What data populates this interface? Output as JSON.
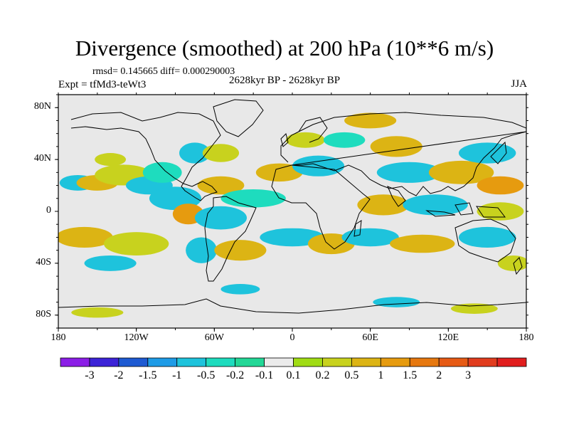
{
  "title": "Divergence (smoothed) at 200 hPa (10**6 m/s)",
  "stats": "rmsd= 0.145665 diff= 0.000290003",
  "expt": "Expt = tfMd3-teWt3",
  "period": "2628kyr BP - 2628kyr BP",
  "season": "JJA",
  "axes": {
    "lat_labels": [
      {
        "lat": 80,
        "label": "80N"
      },
      {
        "lat": 40,
        "label": "40N"
      },
      {
        "lat": 0,
        "label": "0"
      },
      {
        "lat": -40,
        "label": "40S"
      },
      {
        "lat": -80,
        "label": "80S"
      }
    ],
    "lon_labels": [
      {
        "lon": -180,
        "label": "180"
      },
      {
        "lon": -120,
        "label": "120W"
      },
      {
        "lon": -60,
        "label": "60W"
      },
      {
        "lon": 0,
        "label": "0"
      },
      {
        "lon": 60,
        "label": "60E"
      },
      {
        "lon": 120,
        "label": "120E"
      },
      {
        "lon": 180,
        "label": "180"
      }
    ]
  },
  "colorbar": {
    "colors": [
      "#8b1ee6",
      "#3c23d7",
      "#1e5ad2",
      "#1e9be6",
      "#1ec3dc",
      "#1edcbe",
      "#23d796",
      "#ebebeb",
      "#a0dc14",
      "#c8d21e",
      "#dcb414",
      "#e69b0f",
      "#e6780f",
      "#e65a14",
      "#e13c1e",
      "#e11e1e"
    ],
    "labels": [
      "-3",
      "-2",
      "-1.5",
      "-1",
      "-0.5",
      "-0.2",
      "-0.1",
      "0.1",
      "0.2",
      "0.5",
      "1",
      "1.5",
      "2",
      "3"
    ]
  },
  "chart_data": {
    "type": "filled-contour map",
    "variable": "Divergence (smoothed) at 200 hPa",
    "units": "10**6 m/s",
    "season": "JJA",
    "lon_range": [
      -180,
      180
    ],
    "lat_range": [
      -90,
      90
    ],
    "contour_levels": [
      -3,
      -2,
      -1.5,
      -1,
      -0.5,
      -0.2,
      -0.1,
      0.1,
      0.2,
      0.5,
      1,
      1.5,
      2,
      3
    ],
    "blobs": [
      {
        "lon": -165,
        "lat": 22,
        "rx": 14,
        "ry": 6,
        "level": "-0.5"
      },
      {
        "lon": -150,
        "lat": 22,
        "rx": 16,
        "ry": 6,
        "level": "0.5"
      },
      {
        "lon": -130,
        "lat": 28,
        "rx": 22,
        "ry": 8,
        "level": "0.2"
      },
      {
        "lon": -110,
        "lat": 20,
        "rx": 18,
        "ry": 7,
        "level": "-0.5"
      },
      {
        "lon": -140,
        "lat": 40,
        "rx": 12,
        "ry": 5,
        "level": "0.2"
      },
      {
        "lon": -90,
        "lat": 10,
        "rx": 20,
        "ry": 9,
        "level": "-0.5"
      },
      {
        "lon": -100,
        "lat": 30,
        "rx": 15,
        "ry": 8,
        "level": "-0.2"
      },
      {
        "lon": -75,
        "lat": 45,
        "rx": 12,
        "ry": 8,
        "level": "-0.5"
      },
      {
        "lon": -55,
        "lat": 45,
        "rx": 14,
        "ry": 7,
        "level": "0.2"
      },
      {
        "lon": -55,
        "lat": 20,
        "rx": 18,
        "ry": 7,
        "level": "0.5"
      },
      {
        "lon": -80,
        "lat": -2,
        "rx": 12,
        "ry": 8,
        "level": "1"
      },
      {
        "lon": -55,
        "lat": -5,
        "rx": 20,
        "ry": 9,
        "level": "-0.5"
      },
      {
        "lon": -30,
        "lat": 10,
        "rx": 25,
        "ry": 7,
        "level": "-0.2"
      },
      {
        "lon": -10,
        "lat": 30,
        "rx": 18,
        "ry": 7,
        "level": "0.5"
      },
      {
        "lon": 20,
        "lat": 35,
        "rx": 20,
        "ry": 8,
        "level": "-0.5"
      },
      {
        "lon": 10,
        "lat": 55,
        "rx": 15,
        "ry": 6,
        "level": "0.2"
      },
      {
        "lon": 40,
        "lat": 55,
        "rx": 16,
        "ry": 6,
        "level": "-0.2"
      },
      {
        "lon": 60,
        "lat": 70,
        "rx": 20,
        "ry": 6,
        "level": "0.5"
      },
      {
        "lon": 80,
        "lat": 50,
        "rx": 20,
        "ry": 8,
        "level": "0.5"
      },
      {
        "lon": 90,
        "lat": 30,
        "rx": 25,
        "ry": 8,
        "level": "-0.5"
      },
      {
        "lon": 130,
        "lat": 30,
        "rx": 25,
        "ry": 9,
        "level": "0.5"
      },
      {
        "lon": 150,
        "lat": 45,
        "rx": 22,
        "ry": 8,
        "level": "-0.5"
      },
      {
        "lon": 160,
        "lat": 20,
        "rx": 18,
        "ry": 7,
        "level": "1"
      },
      {
        "lon": 70,
        "lat": 5,
        "rx": 20,
        "ry": 8,
        "level": "0.5"
      },
      {
        "lon": 110,
        "lat": 5,
        "rx": 25,
        "ry": 8,
        "level": "-0.5"
      },
      {
        "lon": 160,
        "lat": 0,
        "rx": 18,
        "ry": 7,
        "level": "0.2"
      },
      {
        "lon": -160,
        "lat": -20,
        "rx": 22,
        "ry": 8,
        "level": "0.5"
      },
      {
        "lon": -120,
        "lat": -25,
        "rx": 25,
        "ry": 9,
        "level": "0.2"
      },
      {
        "lon": -140,
        "lat": -40,
        "rx": 20,
        "ry": 6,
        "level": "-0.5"
      },
      {
        "lon": -70,
        "lat": -30,
        "rx": 12,
        "ry": 10,
        "level": "-0.5"
      },
      {
        "lon": -40,
        "lat": -30,
        "rx": 20,
        "ry": 8,
        "level": "0.5"
      },
      {
        "lon": 0,
        "lat": -20,
        "rx": 25,
        "ry": 7,
        "level": "-0.5"
      },
      {
        "lon": 30,
        "lat": -25,
        "rx": 18,
        "ry": 8,
        "level": "0.5"
      },
      {
        "lon": 60,
        "lat": -20,
        "rx": 22,
        "ry": 7,
        "level": "-0.5"
      },
      {
        "lon": 100,
        "lat": -25,
        "rx": 25,
        "ry": 7,
        "level": "0.5"
      },
      {
        "lon": 150,
        "lat": -20,
        "rx": 22,
        "ry": 8,
        "level": "-0.5"
      },
      {
        "lon": 170,
        "lat": -40,
        "rx": 12,
        "ry": 6,
        "level": "0.2"
      },
      {
        "lon": -150,
        "lat": -78,
        "rx": 20,
        "ry": 4,
        "level": "0.2"
      },
      {
        "lon": -40,
        "lat": -60,
        "rx": 15,
        "ry": 4,
        "level": "-0.5"
      },
      {
        "lon": 80,
        "lat": -70,
        "rx": 18,
        "ry": 4,
        "level": "-0.5"
      },
      {
        "lon": 140,
        "lat": -75,
        "rx": 18,
        "ry": 4,
        "level": "0.2"
      }
    ]
  }
}
